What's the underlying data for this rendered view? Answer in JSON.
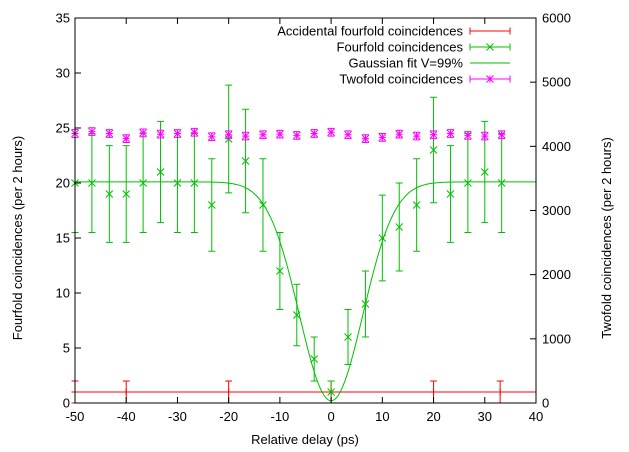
{
  "chart_data": {
    "type": "scatter",
    "xlabel": "Relative delay (ps)",
    "ylabel": "Fourfold coincidences (per 2 hours)",
    "y2label": "Twofold coincidences (per 2 hours)",
    "xlim": [
      -50,
      40
    ],
    "ylim": [
      0,
      35
    ],
    "y2lim": [
      0,
      6000
    ],
    "xticks": [
      -50,
      -40,
      -30,
      -20,
      -10,
      0,
      10,
      20,
      30,
      40
    ],
    "yticks": [
      0,
      5,
      10,
      15,
      20,
      25,
      30,
      35
    ],
    "y2ticks": [
      0,
      1000,
      2000,
      3000,
      4000,
      5000,
      6000
    ],
    "legend_position": "top-right",
    "grid": false,
    "series": [
      {
        "name": "Accidental fourfold coincidences",
        "color": "#ff0000",
        "marker": "plus",
        "axis": "left",
        "x": [
          -50,
          -40,
          -20,
          0,
          20,
          33
        ],
        "y": [
          1,
          1,
          1,
          1,
          1,
          1
        ],
        "err": [
          1,
          1,
          1,
          1,
          1,
          1
        ]
      },
      {
        "name": "Fourfold coincidences",
        "color": "#00c000",
        "marker": "cross",
        "axis": "left",
        "x": [
          -50,
          -46.7,
          -43.3,
          -40,
          -36.7,
          -33.3,
          -30,
          -26.7,
          -23.3,
          -20,
          -16.7,
          -13.3,
          -10,
          -6.7,
          -3.3,
          0,
          3.3,
          6.7,
          10,
          13.3,
          16.7,
          20,
          23.3,
          26.7,
          30,
          33.3
        ],
        "y": [
          20,
          20,
          19,
          19,
          20,
          21,
          20,
          20,
          18,
          24,
          22,
          18,
          12,
          8,
          4,
          1,
          6,
          9,
          15,
          16,
          18,
          23,
          19,
          20,
          21,
          20
        ],
        "err": [
          4.5,
          4.5,
          4.4,
          4.4,
          4.5,
          4.6,
          4.5,
          4.5,
          4.2,
          4.9,
          4.7,
          4.2,
          3.5,
          2.8,
          2,
          1,
          2.5,
          3,
          3.9,
          4,
          4.2,
          4.8,
          4.4,
          4.5,
          4.6,
          4.5
        ]
      },
      {
        "name": "Gaussian fit V=99%",
        "color": "#00c000",
        "marker": "line",
        "axis": "left",
        "fit": {
          "baseline": 20.1,
          "center": 0,
          "sigma": 6.2,
          "visibility": 0.99
        }
      },
      {
        "name": "Twofold coincidences",
        "color": "#ff00ff",
        "marker": "star",
        "axis": "right",
        "x": [
          -50,
          -46.7,
          -43.3,
          -40,
          -36.7,
          -33.3,
          -30,
          -26.7,
          -23.3,
          -20,
          -16.7,
          -13.3,
          -10,
          -6.7,
          -3.3,
          0,
          3.3,
          6.7,
          10,
          13.3,
          16.7,
          20,
          23.3,
          26.7,
          30,
          33.3
        ],
        "y": [
          4200,
          4230,
          4200,
          4120,
          4210,
          4190,
          4200,
          4220,
          4150,
          4180,
          4160,
          4180,
          4190,
          4170,
          4200,
          4220,
          4180,
          4120,
          4140,
          4190,
          4160,
          4180,
          4200,
          4170,
          4160,
          4180
        ],
        "err": [
          60,
          60,
          60,
          60,
          60,
          60,
          60,
          60,
          60,
          60,
          60,
          60,
          60,
          60,
          60,
          60,
          60,
          60,
          60,
          60,
          60,
          60,
          60,
          60,
          60,
          60
        ]
      }
    ]
  }
}
